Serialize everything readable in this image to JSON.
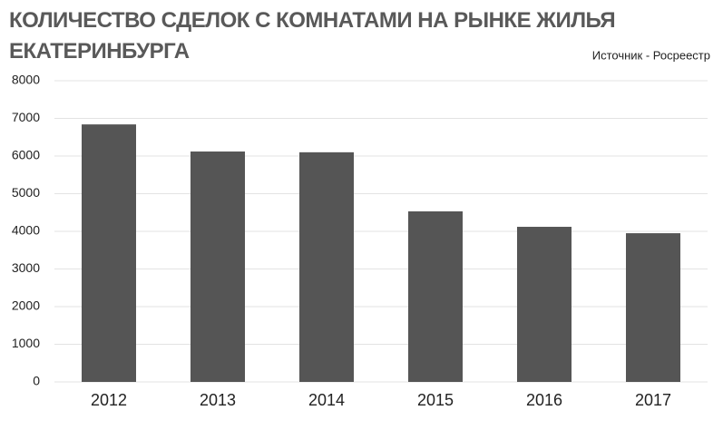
{
  "chart_data": {
    "type": "bar",
    "title": "КОЛИЧЕСТВО СДЕЛОК С КОМНАТАМИ НА РЫНКЕ ЖИЛЬЯ ЕКАТЕРИНБУРГА",
    "source": "Источник - Росреестр",
    "categories": [
      "2012",
      "2013",
      "2014",
      "2015",
      "2016",
      "2017"
    ],
    "values": [
      6840,
      6120,
      6100,
      4530,
      4120,
      3950
    ],
    "color": "#555555",
    "ylim": [
      0,
      8000
    ],
    "yticks": [
      0,
      1000,
      2000,
      3000,
      4000,
      5000,
      6000,
      7000,
      8000
    ],
    "grid": true
  }
}
